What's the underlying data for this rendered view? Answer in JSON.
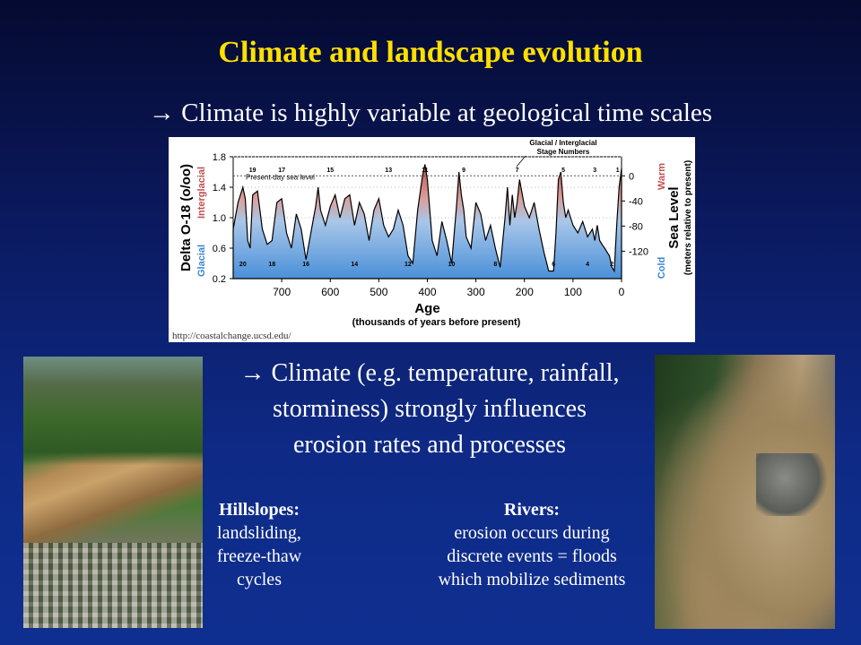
{
  "title": "Climate and landscape evolution",
  "bullet1": "→ Climate is highly variable at geological time scales",
  "bullet2": [
    "→ Climate (e.g. temperature, rainfall,",
    "storminess) strongly influences",
    "erosion rates and processes"
  ],
  "hillslopes": {
    "heading": "Hillslopes:",
    "lines": [
      "landsliding,",
      "freeze-thaw",
      "cycles"
    ]
  },
  "rivers": {
    "heading": "Rivers:",
    "lines": [
      "erosion occurs during",
      "discrete events = floods",
      "which mobilize sediments"
    ]
  },
  "credit": "http://coastalchange.ucsd.edu/",
  "chart_data": {
    "type": "area",
    "title": "",
    "xlabel": "Age",
    "xlabel_sub": "(thousands of years before present)",
    "ylabel_left": "Delta O-18 (o/oo)",
    "ylabel_left_top": "Interglacial",
    "ylabel_left_bottom": "Glacial",
    "ylabel_right": "Sea Level",
    "ylabel_right_sub": "(meters relative to present)",
    "ylabel_right_top": "Warm",
    "ylabel_right_bottom": "Cold",
    "annotation": [
      "Glacial / Interglacial",
      "Stage Numbers"
    ],
    "inset_label": "Present-day sea level",
    "xlim": [
      800,
      0
    ],
    "ylim": [
      0.2,
      1.8
    ],
    "x_ticks": [
      700,
      600,
      500,
      400,
      300,
      200,
      100,
      0
    ],
    "y_ticks_left": [
      "0.2",
      "0.6",
      "1.0",
      "1.4",
      "1.8"
    ],
    "y_ticks_right": [
      "0",
      "-40",
      "-80",
      "-120"
    ],
    "y_ticks_right_values": [
      1.55,
      1.22,
      0.89,
      0.56
    ],
    "present_day_level": 1.55,
    "stage_labels_top": [
      {
        "label": "19",
        "x": 760
      },
      {
        "label": "17",
        "x": 700
      },
      {
        "label": "15",
        "x": 600
      },
      {
        "label": "13",
        "x": 480
      },
      {
        "label": "11",
        "x": 405
      },
      {
        "label": "9",
        "x": 325
      },
      {
        "label": "7",
        "x": 215
      },
      {
        "label": "5",
        "x": 120
      },
      {
        "label": "3",
        "x": 55
      },
      {
        "label": "1",
        "x": 8
      }
    ],
    "stage_labels_bottom": [
      {
        "label": "20",
        "x": 780
      },
      {
        "label": "18",
        "x": 720
      },
      {
        "label": "16",
        "x": 650
      },
      {
        "label": "14",
        "x": 550
      },
      {
        "label": "12",
        "x": 440
      },
      {
        "label": "10",
        "x": 350
      },
      {
        "label": "8",
        "x": 260
      },
      {
        "label": "6",
        "x": 140
      },
      {
        "label": "4",
        "x": 70
      },
      {
        "label": "2",
        "x": 20
      }
    ],
    "series": [
      {
        "x": [
          800,
          790,
          780,
          775,
          770,
          765,
          760,
          750,
          740,
          730,
          720,
          710,
          700,
          690,
          680,
          670,
          660,
          650,
          640,
          630,
          625,
          620,
          610,
          600,
          590,
          580,
          570,
          560,
          550,
          540,
          530,
          520,
          510,
          500,
          490,
          480,
          470,
          460,
          450,
          440,
          430,
          420,
          410,
          405,
          400,
          395,
          390,
          380,
          370,
          360,
          350,
          340,
          335,
          330,
          325,
          320,
          310,
          300,
          290,
          280,
          270,
          260,
          250,
          240,
          235,
          230,
          225,
          220,
          215,
          210,
          200,
          190,
          180,
          170,
          160,
          150,
          140,
          135,
          130,
          125,
          120,
          115,
          110,
          100,
          90,
          80,
          70,
          60,
          55,
          50,
          45,
          40,
          35,
          30,
          25,
          20,
          15,
          10,
          5,
          0
        ],
        "y": [
          0.85,
          1.2,
          1.4,
          1.25,
          0.7,
          0.6,
          1.3,
          1.35,
          0.85,
          0.65,
          0.7,
          1.2,
          1.25,
          0.8,
          0.6,
          1.05,
          0.85,
          0.45,
          0.8,
          1.15,
          1.4,
          1.1,
          0.9,
          1.15,
          1.3,
          1.0,
          1.25,
          1.3,
          0.9,
          1.2,
          1.05,
          0.7,
          1.1,
          1.25,
          0.9,
          0.75,
          0.85,
          1.1,
          0.9,
          0.5,
          0.4,
          1.1,
          1.55,
          1.7,
          1.5,
          1.1,
          0.7,
          0.5,
          0.95,
          0.7,
          0.4,
          1.15,
          1.6,
          1.3,
          1.1,
          0.75,
          0.6,
          1.2,
          1.05,
          0.7,
          0.9,
          0.6,
          0.35,
          1.0,
          1.4,
          0.9,
          1.3,
          1.0,
          1.2,
          1.5,
          1.15,
          1.0,
          1.2,
          0.85,
          0.55,
          0.3,
          0.3,
          0.8,
          1.5,
          1.6,
          1.2,
          1.0,
          1.1,
          0.9,
          0.8,
          0.95,
          0.75,
          0.85,
          0.7,
          0.9,
          0.7,
          0.65,
          0.6,
          0.55,
          0.5,
          0.35,
          0.3,
          0.9,
          1.4,
          1.65
        ]
      }
    ]
  }
}
